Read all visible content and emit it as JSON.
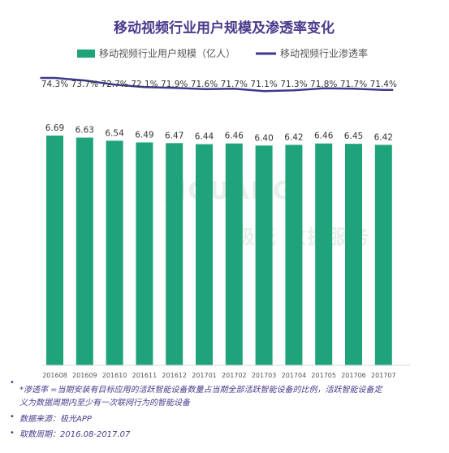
{
  "chart_data": {
    "type": "bar",
    "title": "移动视频行业用户规模及渗透率变化",
    "categories": [
      "201608",
      "201609",
      "201610",
      "201611",
      "201612",
      "201701",
      "201702",
      "201703",
      "201704",
      "201705",
      "201706",
      "201707"
    ],
    "series": [
      {
        "name": "移动视频行业用户规模（亿人）",
        "type": "bar",
        "color": "#1fa37a",
        "values": [
          6.69,
          6.63,
          6.54,
          6.49,
          6.47,
          6.44,
          6.46,
          6.4,
          6.42,
          6.46,
          6.45,
          6.42
        ],
        "labels": [
          "6.69",
          "6.63",
          "6.54",
          "6.49",
          "6.47",
          "6.44",
          "6.46",
          "6.40",
          "6.42",
          "6.46",
          "6.45",
          "6.42"
        ]
      },
      {
        "name": "移动视频行业渗透率",
        "type": "line",
        "color": "#3c3a8f",
        "values": [
          74.3,
          73.7,
          72.7,
          72.1,
          71.9,
          71.6,
          71.7,
          71.1,
          71.3,
          71.8,
          71.7,
          71.4
        ],
        "labels": [
          "74.3%",
          "73.7%",
          "72.7%",
          "72.1%",
          "71.9%",
          "71.6%",
          "71.7%",
          "71.1%",
          "71.3%",
          "71.8%",
          "71.7%",
          "71.4%"
        ]
      }
    ],
    "grid": false,
    "legend_position": "top"
  },
  "watermark": {
    "text": "JIGUANG",
    "subtext": "极光 数据服务"
  },
  "notes": [
    "*渗透率 =当期安装有目标应用的活跃智能设备数量占当期全部活跃智能设备的比例，活跃智能设备定",
    "义为数据周期内至少有一次联网行为的智能设备",
    "数据来源：极光APP",
    "取数周期：2016.08-2017.07"
  ],
  "bullet_glyph": "•"
}
